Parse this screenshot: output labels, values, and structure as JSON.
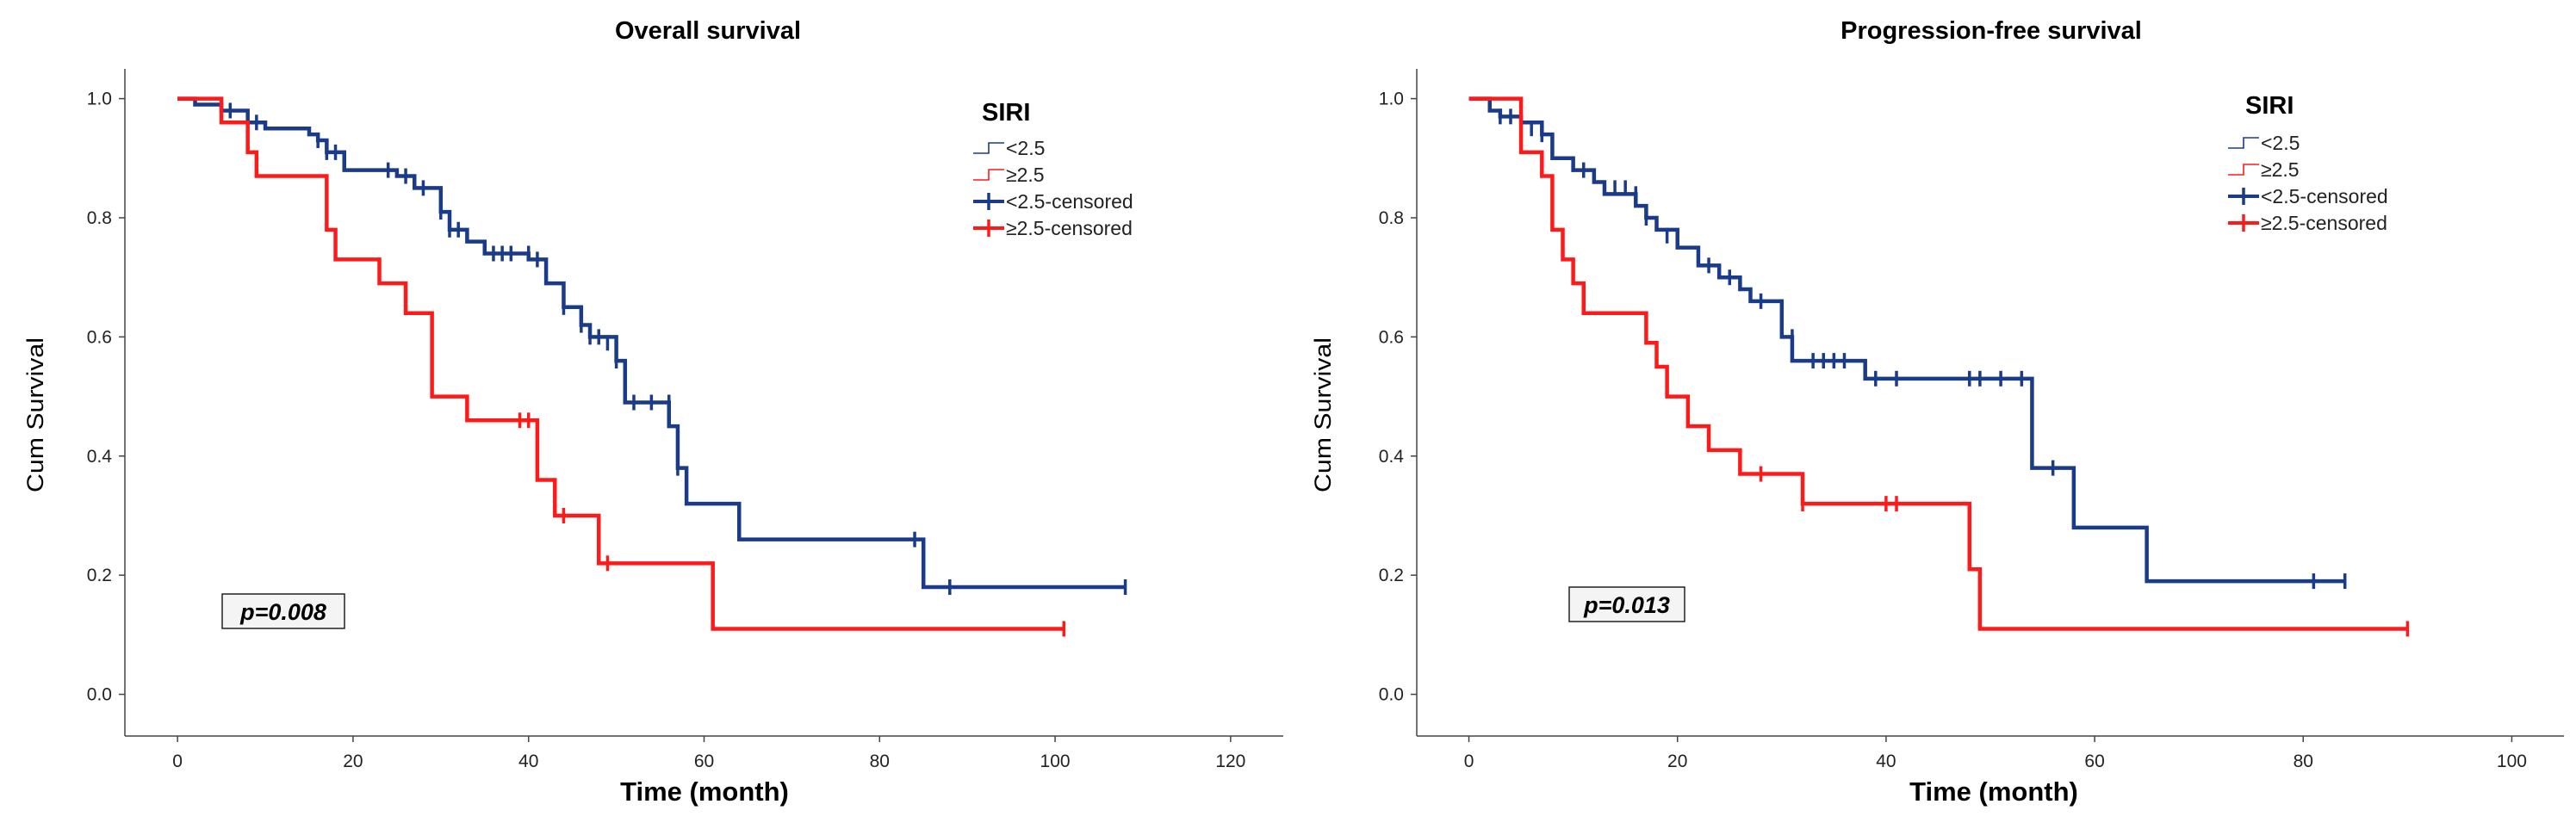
{
  "colors": {
    "low": "#1a3a8a",
    "high": "#ff1a1a",
    "axis": "#444444"
  },
  "chart_data": [
    {
      "type": "line",
      "subtype": "kaplan-meier",
      "title": "Overall survival",
      "xlabel": "Time (month)",
      "ylabel": "Cum Survival",
      "xlim": [
        -6,
        126
      ],
      "ylim": [
        -0.07,
        1.05
      ],
      "xticks": [
        0,
        20,
        40,
        60,
        80,
        100,
        120
      ],
      "yticks": [
        0.0,
        0.2,
        0.4,
        0.6,
        0.8,
        1.0
      ],
      "legend": {
        "title": "SIRI",
        "entries": [
          "<2.5",
          "≥2.5",
          "<2.5-censored",
          "≥2.5-censored"
        ],
        "location": "top-right"
      },
      "annotation": "p=0.008",
      "series": [
        {
          "name": "<2.5",
          "color_key": "low",
          "steps": [
            [
              0,
              1.0
            ],
            [
              2,
              0.99
            ],
            [
              5,
              0.98
            ],
            [
              8,
              0.96
            ],
            [
              10,
              0.95
            ],
            [
              15,
              0.94
            ],
            [
              16,
              0.93
            ],
            [
              17,
              0.91
            ],
            [
              19,
              0.88
            ],
            [
              25,
              0.87
            ],
            [
              27,
              0.85
            ],
            [
              30,
              0.81
            ],
            [
              31,
              0.78
            ],
            [
              33,
              0.76
            ],
            [
              35,
              0.74
            ],
            [
              40,
              0.73
            ],
            [
              42,
              0.69
            ],
            [
              44,
              0.65
            ],
            [
              46,
              0.62
            ],
            [
              47,
              0.6
            ],
            [
              50,
              0.56
            ],
            [
              51,
              0.49
            ],
            [
              56,
              0.45
            ],
            [
              57,
              0.38
            ],
            [
              58,
              0.32
            ],
            [
              64,
              0.26
            ],
            [
              85,
              0.18
            ],
            [
              108,
              0.18
            ]
          ],
          "censored": [
            [
              6,
              0.98
            ],
            [
              8,
              0.96
            ],
            [
              9,
              0.96
            ],
            [
              16,
              0.93
            ],
            [
              17,
              0.91
            ],
            [
              18,
              0.91
            ],
            [
              19,
              0.9
            ],
            [
              24,
              0.88
            ],
            [
              26,
              0.87
            ],
            [
              27,
              0.86
            ],
            [
              28,
              0.85
            ],
            [
              30,
              0.81
            ],
            [
              31,
              0.78
            ],
            [
              32,
              0.78
            ],
            [
              35,
              0.75
            ],
            [
              36,
              0.74
            ],
            [
              37,
              0.74
            ],
            [
              38,
              0.74
            ],
            [
              40,
              0.74
            ],
            [
              41,
              0.73
            ],
            [
              42,
              0.7
            ],
            [
              44,
              0.65
            ],
            [
              46,
              0.62
            ],
            [
              47,
              0.6
            ],
            [
              48,
              0.6
            ],
            [
              49,
              0.59
            ],
            [
              50,
              0.56
            ],
            [
              52,
              0.49
            ],
            [
              54,
              0.49
            ],
            [
              56,
              0.49
            ],
            [
              57,
              0.38
            ],
            [
              84,
              0.26
            ],
            [
              88,
              0.18
            ],
            [
              108,
              0.18
            ]
          ]
        },
        {
          "name": "≥2.5",
          "color_key": "high",
          "steps": [
            [
              0,
              1.0
            ],
            [
              5,
              0.96
            ],
            [
              8,
              0.91
            ],
            [
              9,
              0.87
            ],
            [
              17,
              0.78
            ],
            [
              18,
              0.73
            ],
            [
              23,
              0.69
            ],
            [
              26,
              0.64
            ],
            [
              29,
              0.5
            ],
            [
              33,
              0.46
            ],
            [
              41,
              0.36
            ],
            [
              43,
              0.3
            ],
            [
              48,
              0.22
            ],
            [
              61,
              0.11
            ],
            [
              101,
              0.11
            ]
          ],
          "censored": [
            [
              39,
              0.46
            ],
            [
              40,
              0.46
            ],
            [
              44,
              0.3
            ],
            [
              49,
              0.22
            ],
            [
              101,
              0.11
            ]
          ]
        }
      ]
    },
    {
      "type": "line",
      "subtype": "kaplan-meier",
      "title": "Progression-free survival",
      "xlabel": "Time (month)",
      "ylabel": "Cum Survival",
      "xlim": [
        -5,
        105
      ],
      "ylim": [
        -0.07,
        1.05
      ],
      "xticks": [
        0,
        20,
        40,
        60,
        80,
        100
      ],
      "yticks": [
        0.0,
        0.2,
        0.4,
        0.6,
        0.8,
        1.0
      ],
      "legend": {
        "title": "SIRI",
        "entries": [
          "<2.5",
          "≥2.5",
          "<2.5-censored",
          "≥2.5-censored"
        ],
        "location": "top-right"
      },
      "annotation": "p=0.013",
      "series": [
        {
          "name": "<2.5",
          "color_key": "low",
          "steps": [
            [
              0,
              1.0
            ],
            [
              2,
              0.98
            ],
            [
              3,
              0.97
            ],
            [
              5,
              0.96
            ],
            [
              7,
              0.94
            ],
            [
              8,
              0.9
            ],
            [
              10,
              0.88
            ],
            [
              12,
              0.86
            ],
            [
              13,
              0.84
            ],
            [
              16,
              0.82
            ],
            [
              17,
              0.8
            ],
            [
              18,
              0.78
            ],
            [
              20,
              0.75
            ],
            [
              22,
              0.72
            ],
            [
              24,
              0.7
            ],
            [
              26,
              0.68
            ],
            [
              27,
              0.66
            ],
            [
              30,
              0.6
            ],
            [
              31,
              0.56
            ],
            [
              38,
              0.53
            ],
            [
              54,
              0.38
            ],
            [
              58,
              0.28
            ],
            [
              65,
              0.19
            ],
            [
              84,
              0.19
            ]
          ],
          "censored": [
            [
              3,
              0.97
            ],
            [
              4,
              0.97
            ],
            [
              5,
              0.96
            ],
            [
              6,
              0.95
            ],
            [
              7,
              0.94
            ],
            [
              10,
              0.89
            ],
            [
              11,
              0.88
            ],
            [
              14,
              0.85
            ],
            [
              15,
              0.85
            ],
            [
              16,
              0.84
            ],
            [
              17,
              0.8
            ],
            [
              18,
              0.79
            ],
            [
              19,
              0.77
            ],
            [
              23,
              0.72
            ],
            [
              25,
              0.7
            ],
            [
              26,
              0.69
            ],
            [
              27,
              0.67
            ],
            [
              28,
              0.66
            ],
            [
              30,
              0.65
            ],
            [
              31,
              0.6
            ],
            [
              33,
              0.56
            ],
            [
              34,
              0.56
            ],
            [
              35,
              0.56
            ],
            [
              36,
              0.56
            ],
            [
              39,
              0.53
            ],
            [
              41,
              0.53
            ],
            [
              48,
              0.53
            ],
            [
              49,
              0.53
            ],
            [
              51,
              0.53
            ],
            [
              53,
              0.53
            ],
            [
              56,
              0.38
            ],
            [
              81,
              0.19
            ],
            [
              84,
              0.19
            ]
          ]
        },
        {
          "name": "≥2.5",
          "color_key": "high",
          "steps": [
            [
              0,
              1.0
            ],
            [
              5,
              0.91
            ],
            [
              7,
              0.87
            ],
            [
              8,
              0.78
            ],
            [
              9,
              0.73
            ],
            [
              10,
              0.69
            ],
            [
              11,
              0.64
            ],
            [
              17,
              0.59
            ],
            [
              18,
              0.55
            ],
            [
              19,
              0.5
            ],
            [
              21,
              0.45
            ],
            [
              23,
              0.41
            ],
            [
              26,
              0.37
            ],
            [
              32,
              0.32
            ],
            [
              48,
              0.21
            ],
            [
              49,
              0.11
            ],
            [
              90,
              0.11
            ]
          ],
          "censored": [
            [
              28,
              0.37
            ],
            [
              32,
              0.32
            ],
            [
              40,
              0.32
            ],
            [
              41,
              0.32
            ],
            [
              90,
              0.11
            ]
          ]
        }
      ]
    }
  ]
}
